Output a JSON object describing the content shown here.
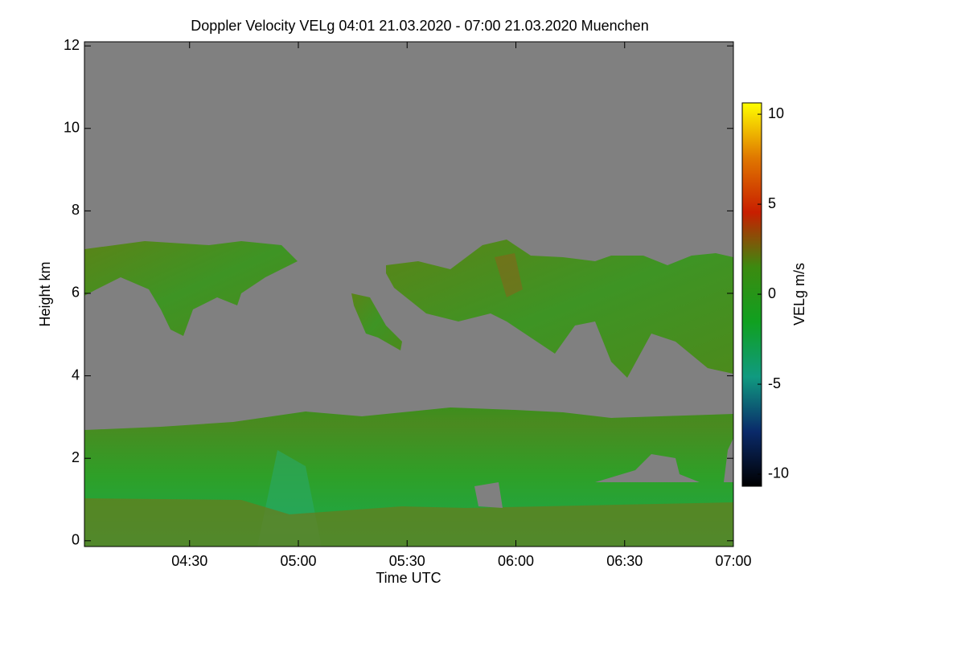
{
  "chart_data": {
    "type": "heatmap",
    "title": "Doppler Velocity VELg   04:01 21.03.2020 - 07:00 21.03.2020 Muenchen",
    "x_label": "Time UTC",
    "y_label": "Height km",
    "colorbar_label": "VELg m/s",
    "xlim": [
      241,
      420
    ],
    "xticks": [
      {
        "value": 270,
        "label": "04:30"
      },
      {
        "value": 300,
        "label": "05:00"
      },
      {
        "value": 330,
        "label": "05:30"
      },
      {
        "value": 360,
        "label": "06:00"
      },
      {
        "value": 390,
        "label": "06:30"
      },
      {
        "value": 420,
        "label": "07:00"
      }
    ],
    "ylim": [
      -0.14,
      12.1
    ],
    "yticks": [
      0,
      2,
      4,
      6,
      8,
      10,
      12
    ],
    "clim": [
      -10.67,
      10.63
    ],
    "cticks": [
      -10,
      -5,
      0,
      5,
      10
    ],
    "colorscale": [
      "#000000",
      "#0a2a6a",
      "#109a80",
      "#10a020",
      "#3c8a10",
      "#c81e00",
      "#e07800",
      "#ffff00"
    ]
  }
}
